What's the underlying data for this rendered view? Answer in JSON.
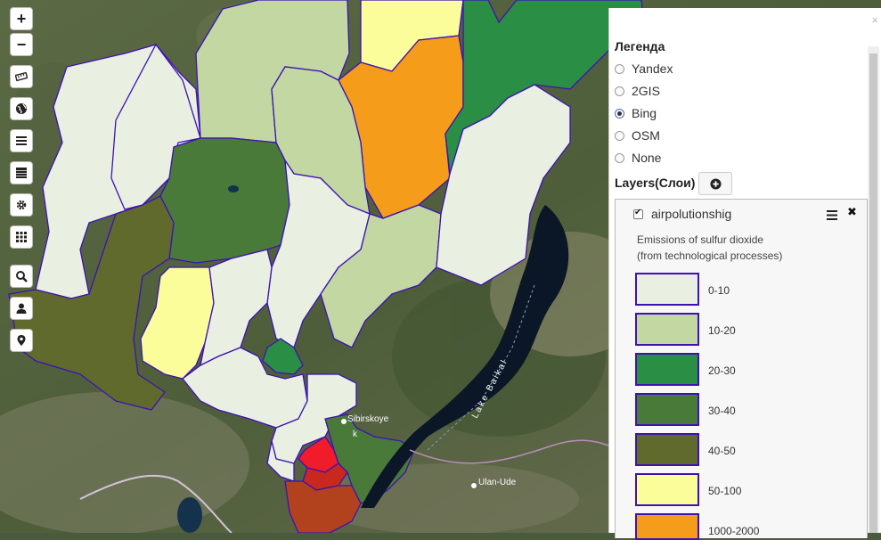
{
  "toolbar": {
    "zoom_in": "+",
    "zoom_out": "−",
    "buttons": [
      "ruler-icon",
      "globe-icon",
      "layers-list-icon",
      "table-icon",
      "gear-icon",
      "grid-icon",
      "search-icon",
      "user-icon",
      "pin-icon"
    ]
  },
  "map": {
    "labels": {
      "lake_baikal": "Lake Baikal",
      "sibirskoye": "Sibirskoye",
      "ulan_ude": "Ulan-Ude",
      "k": "k"
    }
  },
  "panel": {
    "close": "×",
    "legend_title": "Легенда",
    "basemaps": [
      {
        "label": "Yandex",
        "checked": false
      },
      {
        "label": "2GIS",
        "checked": false
      },
      {
        "label": "Bing",
        "checked": true
      },
      {
        "label": "OSM",
        "checked": false
      },
      {
        "label": "None",
        "checked": false
      }
    ],
    "layers_title": "Layers(Слои)",
    "layer": {
      "name": "airpolutionshig",
      "checked": true,
      "description_line1": "Emissions of sulfur dioxide",
      "description_line2": "(from technological processes)",
      "classes": [
        {
          "range": "0-10",
          "color": "#e9efe1"
        },
        {
          "range": "10-20",
          "color": "#c2d7a2"
        },
        {
          "range": "20-30",
          "color": "#2a8e45"
        },
        {
          "range": "30-40",
          "color": "#4a7a3a"
        },
        {
          "range": "40-50",
          "color": "#5f6a2c"
        },
        {
          "range": "50-100",
          "color": "#fbfd9a"
        },
        {
          "range": "1000-2000",
          "color": "#f59c1a"
        }
      ]
    }
  }
}
